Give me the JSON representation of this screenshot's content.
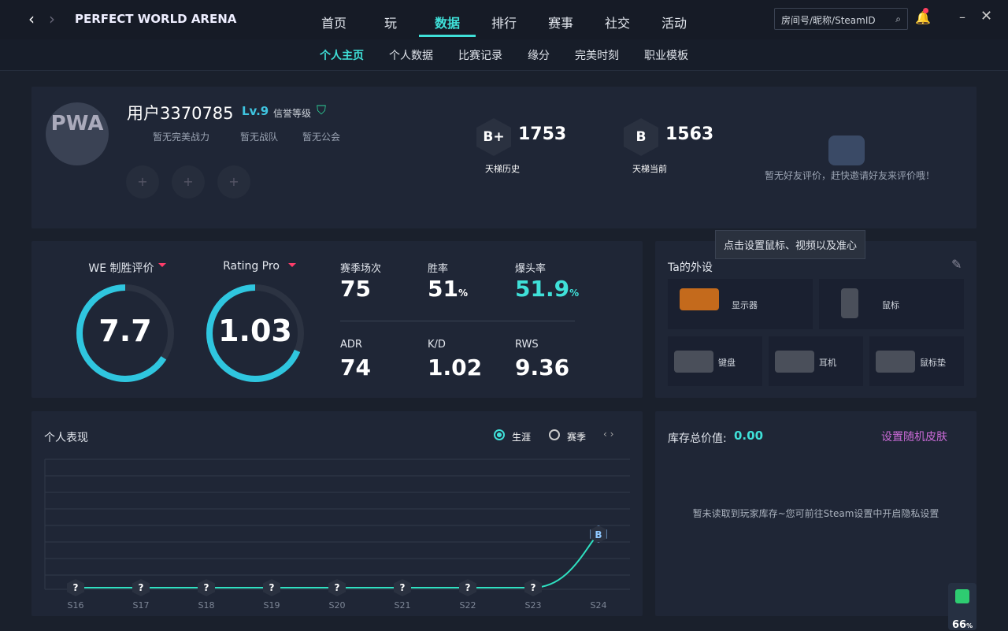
{
  "window": {
    "title": "PERFECT WORLD ARENA",
    "search_placeholder": "房间号/昵称/SteamID"
  },
  "nav": [
    "首页",
    "玩",
    "数据",
    "排行",
    "赛事",
    "社交",
    "活动"
  ],
  "sub_nav": [
    "个人主页",
    "个人数据",
    "比赛记录",
    "缘分",
    "完美时刻",
    "职业模板"
  ],
  "profile": {
    "avatar_text": "PWA",
    "name": "用户3370785",
    "level": "Lv.9",
    "credit_label": "信誉等级",
    "badges": [
      "暂无完美战力",
      "暂无战队",
      "暂无公会"
    ]
  },
  "ladder": [
    {
      "rank": "B+",
      "value": 1753,
      "label": "天梯历史"
    },
    {
      "rank": "B",
      "value": 1563,
      "label": "天梯当前"
    }
  ],
  "friend_review": "暂无好友评价，赶快邀请好友来评价哦！",
  "tooltip": "点击设置鼠标、视频以及准心",
  "ratings": [
    {
      "label": "WE 制胜评价",
      "value": 7.7
    },
    {
      "label": "Rating Pro",
      "value": 1.03
    }
  ],
  "stats": [
    {
      "label": "赛季场次",
      "value": 75
    },
    {
      "label": "胜率",
      "value": 51,
      "unit": "%"
    },
    {
      "label": "爆头率",
      "value": 51.9,
      "unit": "%"
    },
    {
      "label": "ADR",
      "value": 74
    },
    {
      "label": "K/D",
      "value": 1.02
    },
    {
      "label": "RWS",
      "value": 9.36
    }
  ],
  "gear": {
    "title": "Ta的外设",
    "items": [
      "显示器",
      "鼠标",
      "键盘",
      "耳机",
      "鼠标垫"
    ]
  },
  "performance": {
    "title": "个人表现",
    "options": [
      "生涯",
      "赛季"
    ],
    "seasons": [
      "S16",
      "S17",
      "S18",
      "S19",
      "S20",
      "S21",
      "S22",
      "S23",
      "S24"
    ],
    "ranks": [
      "?",
      "?",
      "?",
      "?",
      "?",
      "?",
      "?",
      "?",
      "B"
    ]
  },
  "inventory": {
    "label": "库存总价值:",
    "value": "0.00",
    "random_skin": "设置随机皮肤",
    "notice": "暂未读取到玩家库存~您可前往Steam设置中开启隐私设置"
  },
  "shield": {
    "value": 66,
    "unit": "%"
  }
}
